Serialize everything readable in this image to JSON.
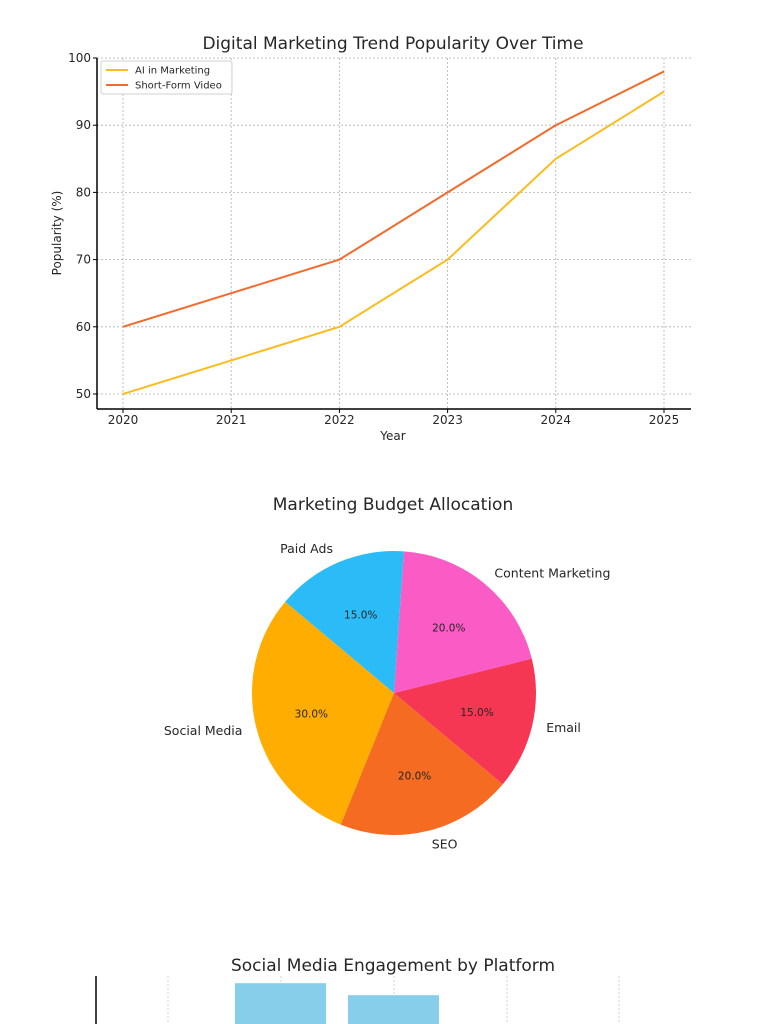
{
  "chart_data": [
    {
      "type": "line",
      "title": "Digital Marketing Trend Popularity Over Time",
      "xlabel": "Year",
      "ylabel": "Popularity (%)",
      "x": [
        "2020",
        "2021",
        "2022",
        "2023",
        "2024",
        "2025"
      ],
      "xticks": [
        "2020",
        "2021",
        "2022",
        "2023",
        "2024",
        "2025"
      ],
      "yticks": [
        "50",
        "60",
        "70",
        "80",
        "90",
        "100"
      ],
      "ylim": [
        50,
        100
      ],
      "grid": true,
      "legend_position": "top-left",
      "series": [
        {
          "name": "AI in Marketing",
          "color": "#fbbc1e",
          "values": [
            50,
            55,
            60,
            70,
            85,
            95
          ]
        },
        {
          "name": "Short-Form Video",
          "color": "#f26b2c",
          "values": [
            60,
            65,
            70,
            80,
            90,
            98
          ]
        }
      ]
    },
    {
      "type": "pie",
      "title": "Marketing Budget Allocation",
      "slices": [
        {
          "label": "Social Media",
          "value": 30,
          "pct": "30.0%",
          "color": "#ffad00"
        },
        {
          "label": "SEO",
          "value": 20,
          "pct": "20.0%",
          "color": "#f46b21"
        },
        {
          "label": "Email",
          "value": 15,
          "pct": "15.0%",
          "color": "#f63754"
        },
        {
          "label": "Content Marketing",
          "value": 20,
          "pct": "20.0%",
          "color": "#fb5bc4"
        },
        {
          "label": "Paid Ads",
          "value": 15,
          "pct": "15.0%",
          "color": "#2bbcf8"
        }
      ]
    },
    {
      "type": "bar",
      "title": "Social Media Engagement by Platform",
      "bar_color": "#87ceeb",
      "grid": true,
      "bar_heights_visible_fraction": [
        0.85,
        0.6
      ]
    }
  ]
}
